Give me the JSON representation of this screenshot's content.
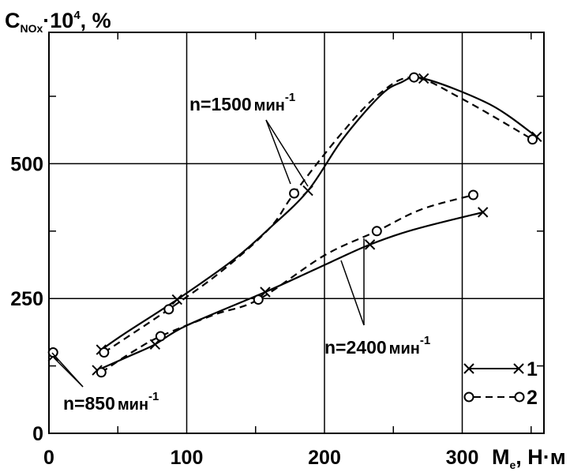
{
  "chart_data": {
    "type": "line",
    "ylabel": {
      "main": "C",
      "sub": "NOx",
      "rest": "·10",
      "sup": "4",
      "unit": ", %"
    },
    "xlabel": {
      "main": "M",
      "sub": "e",
      "unit": ", Н·м"
    },
    "xlim": [
      0,
      355
    ],
    "ylim": [
      0,
      760
    ],
    "xticks": [
      {
        "value": 0,
        "label": "0"
      },
      {
        "value": 100,
        "label": "100"
      },
      {
        "value": 200,
        "label": "200"
      },
      {
        "value": 300,
        "label": "300"
      }
    ],
    "yticks": [
      {
        "value": 0,
        "label": "0"
      },
      {
        "value": 250,
        "label": "250"
      },
      {
        "value": 500,
        "label": "500"
      }
    ],
    "grid": true,
    "legend": [
      {
        "label": "1",
        "marker": "x",
        "dash": "solid"
      },
      {
        "label": "2",
        "marker": "o",
        "dash": "dashed"
      }
    ],
    "annotations": [
      {
        "text": "n=1500",
        "unit": "мин",
        "sup": "-1"
      },
      {
        "text": "n=2400",
        "unit": "мин",
        "sup": "-1"
      },
      {
        "text": "n=850",
        "unit": "мин",
        "sup": "-1"
      }
    ],
    "series": [
      {
        "legend": "1",
        "group": "n=1500",
        "marker": "x",
        "dash": "solid",
        "x": [
          38,
          55,
          93,
          133,
          160,
          188,
          213,
          240,
          255,
          272,
          320,
          354
        ],
        "y": [
          155,
          185,
          248,
          320,
          380,
          450,
          545,
          625,
          650,
          658,
          610,
          550
        ]
      },
      {
        "legend": "2",
        "group": "n=1500",
        "marker": "o",
        "dash": "dashed",
        "x": [
          40,
          87,
          125,
          160,
          178,
          212,
          240,
          265,
          300,
          351
        ],
        "y": [
          150,
          230,
          300,
          380,
          445,
          555,
          630,
          660,
          620,
          545
        ]
      },
      {
        "legend": "1",
        "group": "n=2400",
        "marker": "x",
        "dash": "solid",
        "x": [
          35,
          60,
          77,
          100,
          157,
          205,
          233,
          265,
          315
        ],
        "y": [
          117,
          145,
          165,
          200,
          262,
          318,
          350,
          378,
          410
        ]
      },
      {
        "legend": "2",
        "group": "n=2400",
        "marker": "o",
        "dash": "dashed",
        "x": [
          38,
          60,
          81,
          120,
          152,
          200,
          238,
          270,
          308
        ],
        "y": [
          113,
          150,
          180,
          220,
          248,
          330,
          375,
          415,
          442
        ]
      },
      {
        "legend": "1",
        "group": "n=850",
        "marker": "x",
        "dash": "solid",
        "x": [
          3
        ],
        "y": [
          143
        ]
      },
      {
        "legend": "2",
        "group": "n=850",
        "marker": "o",
        "dash": "dashed",
        "x": [
          3
        ],
        "y": [
          150
        ]
      }
    ]
  }
}
